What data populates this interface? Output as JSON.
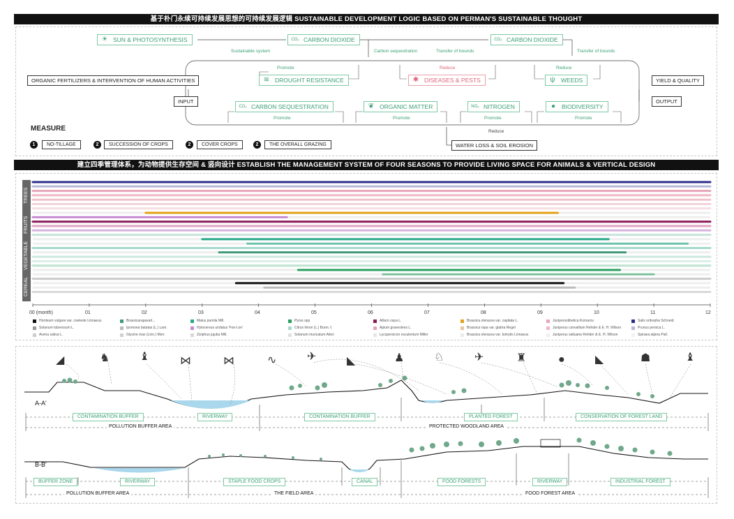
{
  "header1": "基于朴门永续可持续发展思想的可持续发展逻辑  SUSTAINABLE DEVELOPMENT LOGIC BASED ON PERMAN'S SUSTAINABLE THOUGHT",
  "header2": "建立四季管理体系，为动物提供生存空间 & 竖向设计  ESTABLISH THE MANAGEMENT SYSTEM OF FOUR SEASONS TO PROVIDE LIVING SPACE FOR ANIMALS & VERTICAL DESIGN",
  "logic": {
    "sun": "SUN & PHOTOSYNTHESIS",
    "co2a": "CARBON DIOXIDE",
    "co2b": "CARBON DIOXIDE",
    "organic_input": "ORGANIC FERTILIZERS & INTERVENTION OF HUMAN ACTIVITIES",
    "input": "INPUT",
    "drought": "DROUGHT RESISTANCE",
    "diseases": "DISEASES & PESTS",
    "weeds": "WEEDS",
    "yield": "YIELD & QUALITY",
    "output": "OUTPUT",
    "seq": "CARBON SEQUESTRATION",
    "organic": "ORGANIC MATTER",
    "nitrogen": "NITROGEN",
    "bio": "BIODIVERSITY",
    "water": "WATER LOSS & SOIL EROSION",
    "sustainable_system": "Sustainable system",
    "carbon_seq_small": "Carbon sequestration",
    "transfer1": "Transfer of bounds",
    "transfer2": "Transfer of bounds",
    "promote": "Promote",
    "reduce": "Reduce",
    "co2_icon": "CO₂",
    "no3_icon": "NO₃"
  },
  "measure": {
    "title": "MEASURE",
    "items": [
      {
        "num": "1",
        "label": "NO-TILLAGE"
      },
      {
        "num": "2",
        "label": "SUCCESSION OF CROPS"
      },
      {
        "num": "2",
        "label": "COVER CROPS"
      },
      {
        "num": "2",
        "label": "THE OVERALL GRAZING"
      }
    ]
  },
  "categories": [
    "TREES",
    "FRUITS",
    "VEGETABLE",
    "CEREAL"
  ],
  "months": [
    "00 (month)",
    "01",
    "02",
    "03",
    "04",
    "05",
    "06",
    "07",
    "08",
    "09",
    "10",
    "11",
    "12"
  ],
  "legend": [
    {
      "name": "Hordeum vulgare var. coeleste Linnaeus",
      "color": "#111111"
    },
    {
      "name": "Brassicarapavarl...",
      "color": "#3f9a78"
    },
    {
      "name": "Malus pumila Mill.",
      "color": "#2aa889"
    },
    {
      "name": "Pyrus spp",
      "color": "#2aa05f"
    },
    {
      "name": "Allium cepa L.",
      "color": "#8a1a5a"
    },
    {
      "name": "Brassica oleracea var. capitata L.",
      "color": "#e3a21a"
    },
    {
      "name": "Juniperustibetica Komarov.",
      "color": "#e7a6b8"
    },
    {
      "name": "Salix oritrepha Schneid.",
      "color": "#2b2d8a"
    },
    {
      "name": "Solanum tuberosum L.",
      "color": "#999999"
    },
    {
      "name": "Ipomoea batatas (L.) Lam.",
      "color": "#bbbbbb"
    },
    {
      "name": "Hylocereus undatus 'Foo-Lon'",
      "color": "#c88ad3"
    },
    {
      "name": "Citrus limon (L.) Burm. f.",
      "color": "#a6d8cd"
    },
    {
      "name": "Apium graveolens L.",
      "color": "#e2a3c1"
    },
    {
      "name": "Brassica rapa var. glabra Regel",
      "color": "#e8c7a0"
    },
    {
      "name": "Juniperus convallium Rehder & E. H. Wilson",
      "color": "#f0b8c4"
    },
    {
      "name": "Prunus persica L.",
      "color": "#b8b8d8"
    },
    {
      "name": "Avena sativa L.",
      "color": "#cccccc"
    },
    {
      "name": "Glycine max (Linn.) Merr.",
      "color": "#d0d0d0"
    },
    {
      "name": "Ziziphus jujuba Mill.",
      "color": "#d8d8d8"
    },
    {
      "name": "Solanum muricatum Aiton",
      "color": "#e0e0e0"
    },
    {
      "name": "Lycopersicon esculentum Miller",
      "color": "#e5e5e5"
    },
    {
      "name": "Brassica oleracea var. botrytis Linnaeus",
      "color": "#eaeaea"
    },
    {
      "name": "Juniperus saltuaria Rehder & E. H. Wilson",
      "color": "#efefef"
    },
    {
      "name": "Spiraea alpina Pall.",
      "color": "#f2f2f2"
    }
  ],
  "section_a": {
    "label": "A-A'",
    "zones": [
      "CONTAMINATION BUFFER",
      "RIVERWAY",
      "CONTAMINATION BUFFER",
      "PLANTED FOREST",
      "CONSERVATION OF FOREST LAND"
    ],
    "areas": [
      "POLLUTION BUFFER AREA",
      "PROTECTED WOODLAND AREA"
    ]
  },
  "section_b": {
    "label": "B-B'",
    "zones": [
      "BUFFER ZONE",
      "RIVERWAY",
      "STAPLE FOOD CROPS",
      "CANAL",
      "FOOD FORESTS",
      "RIVERWAY",
      "INDUSTRIAL FOREST"
    ],
    "areas": [
      "POLLUTION BUFFER AREA",
      "THE FIELD AREA",
      "FOOD FOREST AREA"
    ]
  }
}
